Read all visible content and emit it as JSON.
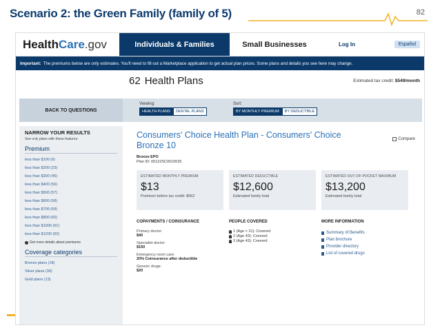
{
  "slide": {
    "title": "Scenario 2: the Green Family (family of 5)",
    "page_number": "82"
  },
  "header": {
    "logo_health": "Health",
    "logo_care": "Care",
    "logo_gov": ".gov",
    "nav_individuals": "Individuals & Families",
    "nav_small_business": "Small Businesses",
    "login": "Log In",
    "espanol": "Español"
  },
  "banner": {
    "important": "Important:",
    "text": "The premiums below are only estimates. You'll need to fill out a Marketplace application to get actual plan prices. Some plans and details you see here may change."
  },
  "results": {
    "count": "62",
    "label": "Health Plans",
    "tax_credit_label": "Estimated tax credit:",
    "tax_credit_value": "$549/month"
  },
  "filters": {
    "back": "BACK TO QUESTIONS",
    "viewing_label": "Viewing:",
    "viewing_options": [
      "HEALTH PLANS",
      "DENTAL PLANS"
    ],
    "sort_label": "Sort:",
    "sort_options": [
      "BY MONTHLY PREMIUM",
      "BY DEDUCTIBLE"
    ]
  },
  "sidebar": {
    "heading": "NARROW YOUR RESULTS",
    "subheading": "See only plans with these features:",
    "premium_title": "Premium",
    "premium_items": [
      "less than $100 (6)",
      "less than $200 (23)",
      "less than $300 (45)",
      "less than $400 (56)",
      "less than $500 (57)",
      "less than $600 (58)",
      "less than $700 (59)",
      "less than $800 (60)",
      "less than $1000 (61)",
      "less than $1200 (62)"
    ],
    "premium_note": "Get more details about premiums",
    "coverage_title": "Coverage categories",
    "coverage_items": [
      "Bronze plans (18)",
      "Silver plans (30)",
      "Gold plans (13)"
    ]
  },
  "plan": {
    "name": "Consumers' Choice Health Plan - Consumers' Choice Bronze 10",
    "compare": "Compare",
    "metal": "Bronze",
    "type": "EPO",
    "plan_id": "Plan ID: 65122SC0010026",
    "costs": [
      {
        "label": "ESTIMATED MONTHLY PREMIUM",
        "value": "$13",
        "note": "Premium before tax credit: $562"
      },
      {
        "label": "ESTIMATED DEDUCTIBLE",
        "value": "$12,600",
        "note": "Estimated family total"
      },
      {
        "label": "ESTIMATED OUT-OF-POCKET MAXIMUM",
        "value": "$13,200",
        "note": "Estimated family total"
      }
    ],
    "copay_heading": "COPAYMENTS / COINSURANCE",
    "copays": [
      {
        "k": "Primary doctor:",
        "v": "$40"
      },
      {
        "k": "Specialist doctor:",
        "v": "$150"
      },
      {
        "k": "Emergency room care:",
        "v": "20% Coinsurance after deductible"
      },
      {
        "k": "Generic drugs:",
        "v": "$20"
      }
    ],
    "people_heading": "PEOPLE COVERED",
    "people": [
      "1 (Age < 21): Covered",
      "2 (Age 43): Covered",
      "3 (Age 43): Covered"
    ],
    "more_heading": "MORE INFORMATION",
    "more_links": [
      "Summary of Benefits",
      "Plan brochure",
      "Provider directory",
      "List of covered drugs"
    ]
  },
  "colors": {
    "navy": "#0b3a6a",
    "link_blue": "#2a6fb5",
    "title_blue": "#0d3b6e",
    "accent_yellow": "#f0b323"
  }
}
